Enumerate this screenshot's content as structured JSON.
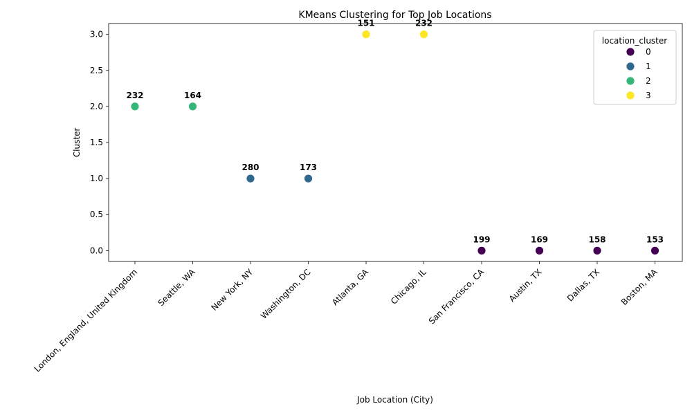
{
  "chart_data": {
    "type": "scatter",
    "title": "KMeans Clustering for Top Job Locations",
    "xlabel": "Job Location (City)",
    "ylabel": "Cluster",
    "categories": [
      "London, England, United Kingdom",
      "Seattle, WA",
      "New York, NY",
      "Washington, DC",
      "Atlanta, GA",
      "Chicago, IL",
      "San Francisco, CA",
      "Austin, TX",
      "Dallas, TX",
      "Boston, MA"
    ],
    "values": [
      2,
      2,
      1,
      1,
      3,
      3,
      0,
      0,
      0,
      0
    ],
    "point_labels": [
      "232",
      "164",
      "280",
      "173",
      "151",
      "232",
      "199",
      "169",
      "158",
      "153"
    ],
    "ylim": [
      -0.15,
      3.15
    ],
    "yticks": [
      "0.0",
      "0.5",
      "1.0",
      "1.5",
      "2.0",
      "2.5",
      "3.0"
    ],
    "grid": false,
    "legend": {
      "title": "location_cluster",
      "placement": "top-right",
      "entries": [
        "0",
        "1",
        "2",
        "3"
      ]
    },
    "colors": {
      "0": "#440154",
      "1": "#31688e",
      "2": "#35b779",
      "3": "#fde725"
    }
  }
}
